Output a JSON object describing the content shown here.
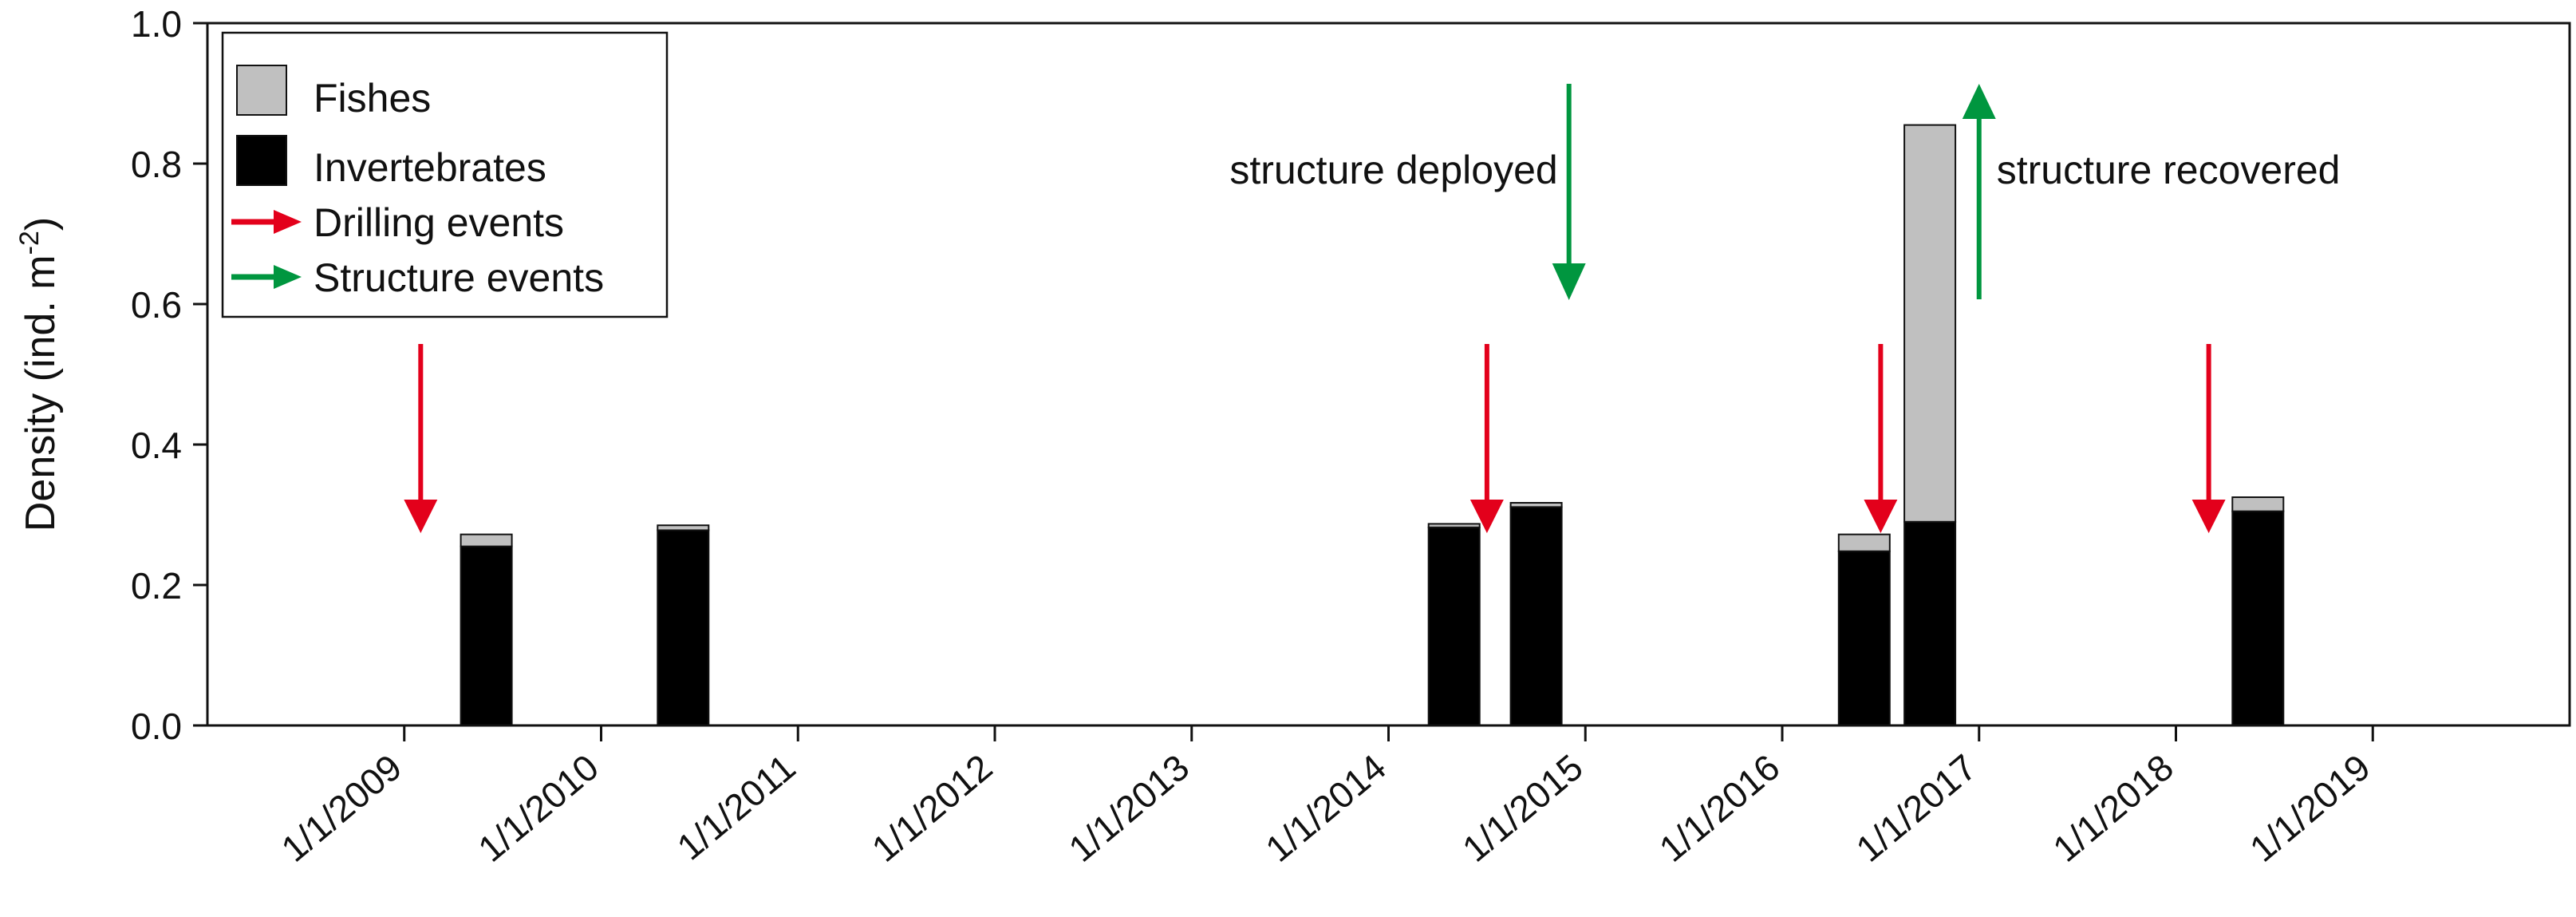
{
  "chart_data": {
    "type": "bar",
    "stacked": true,
    "title": "",
    "xlabel": "",
    "ylabel_main": "Density (ind. m",
    "ylabel_sup": "-2",
    "ylabel_tail": ")",
    "xlim": [
      "2008-01-01",
      "2020-01-01"
    ],
    "ylim": [
      0.0,
      1.0
    ],
    "yticks": [
      0.0,
      0.2,
      0.4,
      0.6,
      0.8,
      1.0
    ],
    "ytick_labels": [
      "0.0",
      "0.2",
      "0.4",
      "0.6",
      "0.8",
      "1.0"
    ],
    "xticks": [
      2009,
      2010,
      2011,
      2012,
      2013,
      2014,
      2015,
      2016,
      2017,
      2018,
      2019
    ],
    "xtick_labels": [
      "1/1/2009",
      "1/1/2010",
      "1/1/2011",
      "1/1/2012",
      "1/1/2013",
      "1/1/2014",
      "1/1/2015",
      "1/1/2016",
      "1/1/2017",
      "1/1/2018",
      "1/1/2019"
    ],
    "grid": false,
    "legend_position": "top-left",
    "series": [
      {
        "name": "Invertebrates",
        "color": "#000000",
        "values": [
          0.255,
          0.278,
          0.282,
          0.311,
          0.248,
          0.29,
          0.305
        ]
      },
      {
        "name": "Fishes",
        "color": "#c0c0c0",
        "values": [
          0.017,
          0.007,
          0.005,
          0.006,
          0.024,
          0.565,
          0.02
        ]
      }
    ],
    "dates": [
      "2009-06",
      "2010-06",
      "2014-05",
      "2014-10",
      "2016-06",
      "2016-10",
      "2018-06"
    ],
    "drilling_events": {
      "name": "Drilling events",
      "color": "#e3001b",
      "dates": [
        "2009-02",
        "2014-07",
        "2016-07",
        "2018-03"
      ]
    },
    "structure_events": {
      "name": "Structure events",
      "color": "#00963f",
      "events": [
        {
          "date": "2014-12",
          "direction": "down",
          "label": "structure deployed"
        },
        {
          "date": "2017-01",
          "direction": "up",
          "label": "structure recovered"
        }
      ]
    },
    "legend": [
      "Fishes",
      "Invertebrates",
      "Drilling events",
      "Structure events"
    ]
  }
}
